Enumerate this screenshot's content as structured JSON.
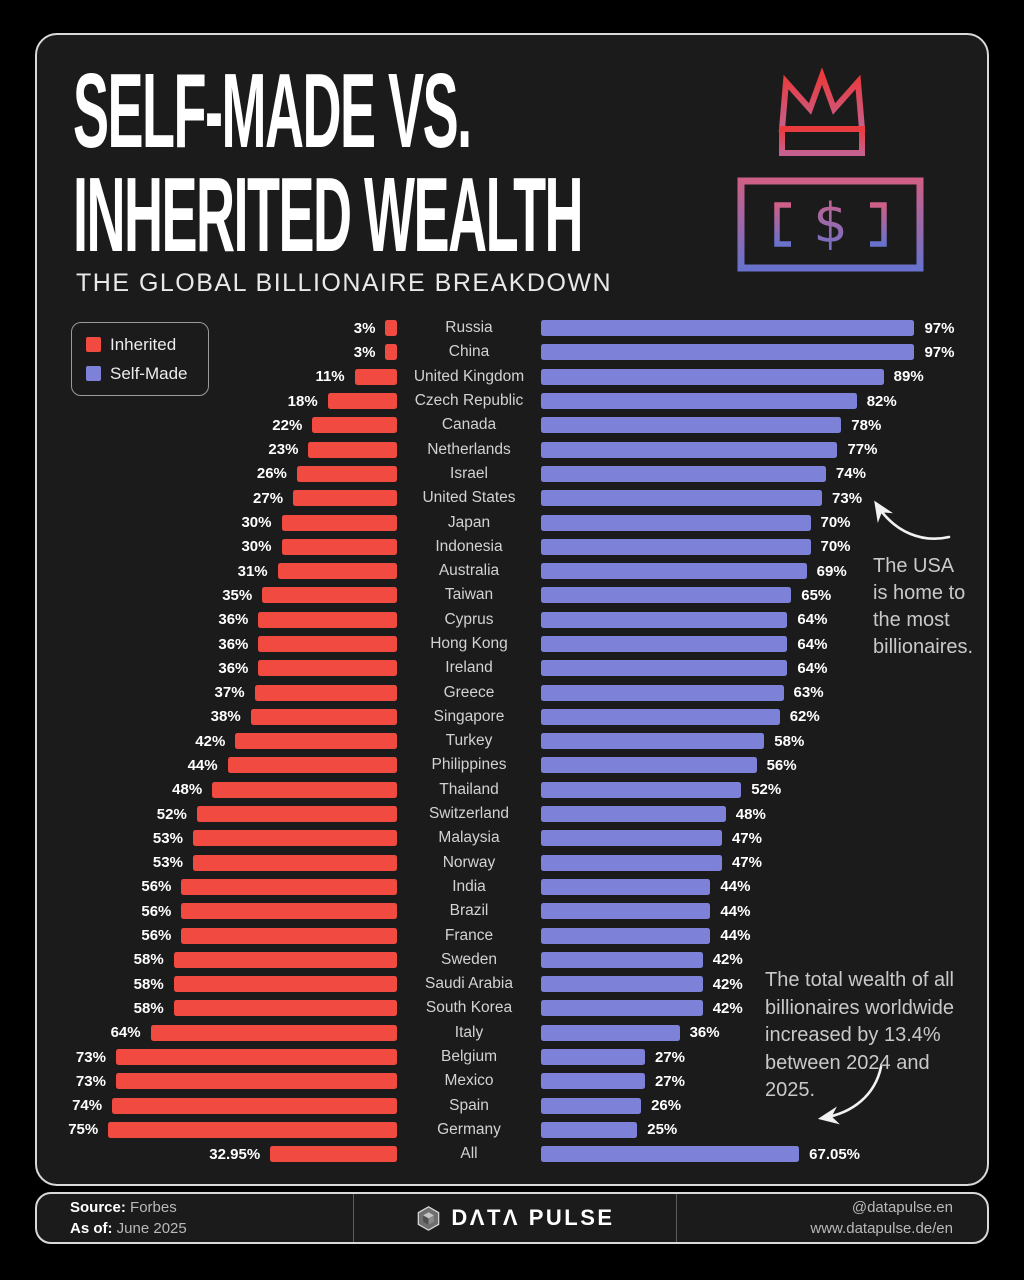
{
  "title": {
    "line1": "SELF-MADE VS.",
    "line2": "INHERITED WEALTH",
    "subtitle": "THE GLOBAL BILLIONAIRE BREAKDOWN"
  },
  "legend": {
    "items": [
      {
        "label": "Inherited",
        "color": "#f04a41"
      },
      {
        "label": "Self-Made",
        "color": "#7d81d8"
      }
    ]
  },
  "icons": {
    "crown_icon": "crown outline, red-pink gradient",
    "money_icon": "banknote outline with dollar sign, pink-to-blue gradient",
    "brand_icon": "faceted hexagon gem"
  },
  "annotations": {
    "usa_note": "The USA\nis home to\nthe most\nbillionaires.",
    "wealth_note": "The total wealth of all\nbillionaires worldwide\nincreased by 13.4%\nbetween 2024 and\n2025."
  },
  "footer": {
    "source_label": "Source:",
    "source_value": "Forbes",
    "asof_label": "As of:",
    "asof_value": "June 2025",
    "brand": "DΛTΛ PULSE",
    "handle": "@datapulse.en",
    "url": "www.datapulse.de/en"
  },
  "chart_data": {
    "type": "bar",
    "orientation": "diverging-horizontal",
    "title": "Self-Made vs. Inherited Wealth — The Global Billionaire Breakdown",
    "value_suffix": "%",
    "xlim": [
      0,
      100
    ],
    "categories": [
      "Russia",
      "China",
      "United Kingdom",
      "Czech Republic",
      "Canada",
      "Netherlands",
      "Israel",
      "United States",
      "Japan",
      "Indonesia",
      "Australia",
      "Taiwan",
      "Cyprus",
      "Hong Kong",
      "Ireland",
      "Greece",
      "Singapore",
      "Turkey",
      "Philippines",
      "Thailand",
      "Switzerland",
      "Malaysia",
      "Norway",
      "India",
      "Brazil",
      "France",
      "Sweden",
      "Saudi Arabia",
      "South Korea",
      "Italy",
      "Belgium",
      "Mexico",
      "Spain",
      "Germany",
      "All"
    ],
    "series": [
      {
        "name": "Inherited",
        "color": "#f04a41",
        "values": [
          3,
          3,
          11,
          18,
          22,
          23,
          26,
          27,
          30,
          30,
          31,
          35,
          36,
          36,
          36,
          37,
          38,
          42,
          44,
          48,
          52,
          53,
          53,
          56,
          56,
          56,
          58,
          58,
          58,
          64,
          73,
          73,
          74,
          75,
          32.95
        ]
      },
      {
        "name": "Self-Made",
        "color": "#7d81d8",
        "values": [
          97,
          97,
          89,
          82,
          78,
          77,
          74,
          73,
          70,
          70,
          69,
          65,
          64,
          64,
          64,
          63,
          62,
          58,
          56,
          52,
          48,
          47,
          47,
          44,
          44,
          44,
          42,
          42,
          42,
          36,
          27,
          27,
          26,
          25,
          67.05
        ]
      }
    ],
    "legend_position": "upper-left",
    "grid": false
  }
}
